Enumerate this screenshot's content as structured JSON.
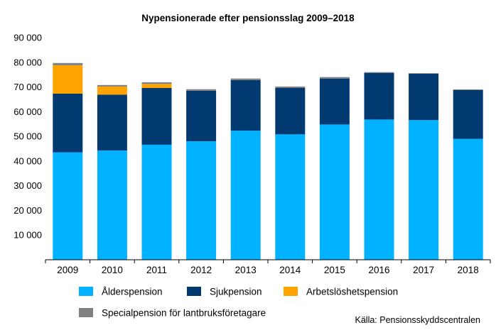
{
  "chart_data": {
    "type": "bar",
    "stacked": true,
    "title": "Nypensionerade efter pensionsslag 2009–2018",
    "xlabel": "",
    "ylabel": "",
    "categories": [
      "2009",
      "2010",
      "2011",
      "2012",
      "2013",
      "2014",
      "2015",
      "2016",
      "2017",
      "2018"
    ],
    "ylim": [
      0,
      90000
    ],
    "yticks": [
      10000,
      20000,
      30000,
      40000,
      50000,
      60000,
      70000,
      80000,
      90000
    ],
    "ytick_labels": [
      "10 000",
      "20 000",
      "30 000",
      "40 000",
      "50 000",
      "60 000",
      "70 000",
      "80 000",
      "90 000"
    ],
    "grid": false,
    "legend_position": "bottom",
    "series": [
      {
        "name": "Ålderspension",
        "color": "#00b2ff",
        "values": [
          43500,
          44200,
          46600,
          48000,
          52300,
          50800,
          54800,
          56800,
          56600,
          49000
        ]
      },
      {
        "name": "Sjukpension",
        "color": "#003a70",
        "values": [
          23800,
          22700,
          23000,
          20500,
          20500,
          18800,
          18600,
          18900,
          18800,
          19800
        ]
      },
      {
        "name": "Arbetslöshetspension",
        "color": "#ffa300",
        "values": [
          11500,
          3300,
          1600,
          0,
          0,
          0,
          0,
          0,
          0,
          0
        ]
      },
      {
        "name": "Specialpension för lantbruksföretagare",
        "color": "#808080",
        "values": [
          900,
          600,
          700,
          600,
          600,
          600,
          600,
          300,
          200,
          200
        ]
      }
    ],
    "source": "Källa: Pensionsskyddscentralen"
  }
}
